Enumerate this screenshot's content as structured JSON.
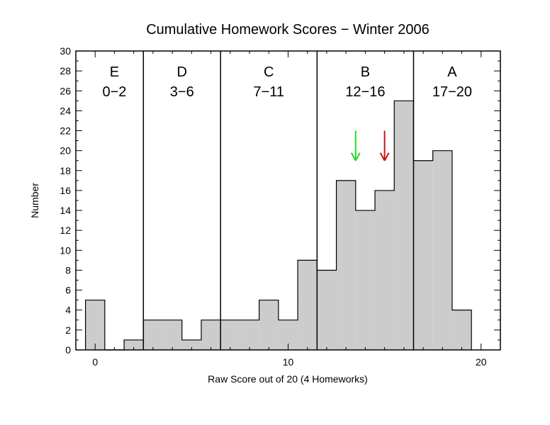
{
  "chart_data": {
    "type": "bar",
    "title": "Cumulative Homework Scores − Winter 2006",
    "xlabel": "Raw Score out of 20 (4 Homeworks)",
    "ylabel": "Number",
    "xlim": [
      -1,
      21
    ],
    "ylim": [
      0,
      30
    ],
    "x_ticks": [
      0,
      10,
      20
    ],
    "y_ticks": [
      0,
      2,
      4,
      6,
      8,
      10,
      12,
      14,
      16,
      18,
      20,
      22,
      24,
      26,
      28,
      30
    ],
    "x_tick_labels": [
      "0",
      "10",
      "20"
    ],
    "y_tick_labels": [
      "0",
      "2",
      "4",
      "6",
      "8",
      "10",
      "12",
      "14",
      "16",
      "18",
      "20",
      "22",
      "24",
      "26",
      "28",
      "30"
    ],
    "x": [
      0,
      1,
      2,
      3,
      4,
      5,
      6,
      7,
      8,
      9,
      10,
      11,
      12,
      13,
      14,
      15,
      16,
      17,
      18,
      19
    ],
    "values": [
      5,
      0,
      1,
      3,
      3,
      1,
      3,
      3,
      3,
      5,
      3,
      9,
      8,
      17,
      14,
      16,
      25,
      19,
      20,
      4
    ],
    "bar_color": "#cccccc",
    "grade_dividers": [
      2.5,
      6.5,
      11.5,
      16.5
    ],
    "grade_bands": [
      {
        "letter": "E",
        "range": "0−2",
        "x_center": 1
      },
      {
        "letter": "D",
        "range": "3−6",
        "x_center": 4.5
      },
      {
        "letter": "C",
        "range": "7−11",
        "x_center": 9
      },
      {
        "letter": "B",
        "range": "12−16",
        "x_center": 14
      },
      {
        "letter": "A",
        "range": "17−20",
        "x_center": 18.5
      }
    ],
    "arrows": [
      {
        "x": 13.5,
        "y_top": 22,
        "y_bottom": 19,
        "color": "#22dd22"
      },
      {
        "x": 15.0,
        "y_top": 22,
        "y_bottom": 19,
        "color": "#cc1111"
      }
    ],
    "grid": false
  }
}
